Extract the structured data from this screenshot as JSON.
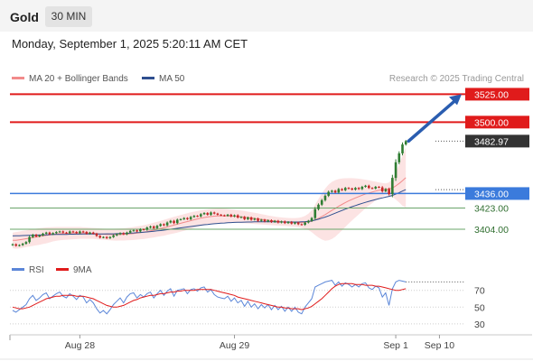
{
  "header": {
    "symbol": "Gold",
    "timeframe": "30 MIN",
    "datetime": "Monday, September 1, 2025 5:20:11 AM CET"
  },
  "colors": {
    "ma20": "#f28b8b",
    "ma50": "#2f4f8f",
    "bands_fill": "#fbdada",
    "resistance": "#e01b1b",
    "support": "#3b7bdc",
    "support_minor": "#6aa56a",
    "candle_up": "#2f7d32",
    "candle_down": "#c62828",
    "rsi": "#5b86d8",
    "rsi_ma": "#e01b1b",
    "current_price_box": "#333333",
    "arrow": "#2a5db0"
  },
  "chart_data": [
    {
      "type": "candlestick",
      "legend": [
        {
          "name": "MA 20 + Bollinger Bands",
          "color": "#f28b8b"
        },
        {
          "name": "MA 50",
          "color": "#2f4f8f"
        }
      ],
      "watermark": "Research © 2025 Trading Central",
      "y_range": [
        3387,
        3531
      ],
      "levels": [
        {
          "value": 3525.0,
          "label": "3525.00",
          "kind": "resistance"
        },
        {
          "value": 3500.0,
          "label": "3500.00",
          "kind": "resistance"
        },
        {
          "value": 3482.97,
          "label": "3482.97",
          "kind": "current"
        },
        {
          "value": 3436.0,
          "label": "3436.00",
          "kind": "support"
        },
        {
          "value": 3423.0,
          "label": "3423.00",
          "kind": "support_minor"
        },
        {
          "value": 3404.0,
          "label": "3404.00",
          "kind": "support_minor"
        }
      ],
      "x_axis": {
        "ticks": [
          {
            "index": 20,
            "label": "Aug 28"
          },
          {
            "index": 66,
            "label": "Aug 29"
          },
          {
            "index": 114,
            "label": "Sep 1"
          },
          {
            "index": 127,
            "label": "Sep 10"
          }
        ]
      },
      "close": [
        3390.5,
        3389.2,
        3389.8,
        3391.0,
        3392.5,
        3397.0,
        3399.0,
        3397.5,
        3398.5,
        3400.0,
        3401.0,
        3399.5,
        3400.5,
        3401.5,
        3402.0,
        3401.0,
        3400.5,
        3402.0,
        3401.5,
        3400.5,
        3402.0,
        3401.5,
        3400.0,
        3401.0,
        3400.0,
        3398.0,
        3396.5,
        3397.0,
        3396.0,
        3397.0,
        3398.5,
        3399.5,
        3400.5,
        3399.5,
        3401.0,
        3402.5,
        3403.0,
        3402.0,
        3404.0,
        3403.5,
        3405.5,
        3406.5,
        3405.0,
        3407.0,
        3408.5,
        3407.5,
        3410.0,
        3411.5,
        3409.5,
        3412.5,
        3413.0,
        3414.0,
        3413.0,
        3415.0,
        3416.0,
        3415.5,
        3417.5,
        3418.5,
        3417.0,
        3419.0,
        3418.0,
        3417.0,
        3416.5,
        3416.0,
        3417.0,
        3415.5,
        3416.5,
        3414.5,
        3415.0,
        3413.0,
        3414.5,
        3412.5,
        3413.5,
        3411.5,
        3412.5,
        3411.0,
        3412.0,
        3410.5,
        3411.5,
        3410.0,
        3411.0,
        3409.5,
        3410.5,
        3409.0,
        3410.0,
        3408.5,
        3408.0,
        3410.0,
        3411.5,
        3414.0,
        3422.0,
        3426.0,
        3430.0,
        3434.0,
        3437.5,
        3438.5,
        3437.0,
        3440.0,
        3439.0,
        3441.0,
        3440.5,
        3439.5,
        3441.0,
        3440.0,
        3442.0,
        3443.0,
        3441.0,
        3440.5,
        3442.0,
        3441.5,
        3438.0,
        3440.0,
        3435.5,
        3450.0,
        3464.0,
        3472.0,
        3480.0,
        3482.97
      ],
      "bands": {
        "from_index": 0,
        "ma20": [
          3394.0,
          3394.0,
          3394.5,
          3395.0,
          3395.5,
          3396.0,
          3396.5,
          3397.0,
          3397.5,
          3398.0,
          3398.5,
          3399.0,
          3399.5,
          3399.8,
          3400.0,
          3400.2,
          3400.3,
          3400.4,
          3400.5,
          3400.6,
          3400.7,
          3400.6,
          3400.5,
          3400.4,
          3400.3,
          3400.0,
          3399.8,
          3399.6,
          3399.4,
          3399.3,
          3399.2,
          3399.2,
          3399.3,
          3399.4,
          3399.6,
          3399.9,
          3400.2,
          3400.6,
          3401.0,
          3401.4,
          3402.0,
          3402.6,
          3403.2,
          3403.9,
          3404.6,
          3405.3,
          3406.1,
          3406.9,
          3407.7,
          3408.5,
          3409.3,
          3410.1,
          3410.9,
          3411.7,
          3412.5,
          3413.2,
          3413.9,
          3414.5,
          3415.0,
          3415.4,
          3415.7,
          3415.9,
          3416.0,
          3416.0,
          3415.9,
          3415.8,
          3415.6,
          3415.4,
          3415.1,
          3414.8,
          3414.5,
          3414.1,
          3413.7,
          3413.3,
          3412.9,
          3412.5,
          3412.1,
          3411.7,
          3411.4,
          3411.1,
          3410.8,
          3410.6,
          3410.4,
          3410.2,
          3410.1,
          3410.0,
          3410.0,
          3410.2,
          3410.6,
          3411.2,
          3412.4,
          3413.8,
          3415.4,
          3417.1,
          3419.0,
          3420.9,
          3422.6,
          3424.5,
          3426.2,
          3427.9,
          3429.4,
          3430.8,
          3432.1,
          3433.3,
          3434.5,
          3435.6,
          3436.5,
          3437.3,
          3438.2,
          3438.9,
          3439.3,
          3439.9,
          3440.1,
          3441.0,
          3442.8,
          3445.0,
          3447.5,
          3450.2
        ],
        "upper": [
          3401.0,
          3401.5,
          3402.0,
          3402.5,
          3403.0,
          3403.5,
          3404.0,
          3404.5,
          3405.0,
          3405.3,
          3405.6,
          3405.8,
          3405.9,
          3406.0,
          3406.0,
          3406.0,
          3406.0,
          3406.0,
          3406.0,
          3406.0,
          3406.0,
          3405.8,
          3405.6,
          3405.4,
          3405.2,
          3405.0,
          3404.8,
          3404.6,
          3404.5,
          3404.5,
          3404.5,
          3404.6,
          3404.7,
          3404.9,
          3405.2,
          3405.6,
          3406.0,
          3406.5,
          3407.0,
          3407.6,
          3408.3,
          3409.0,
          3409.8,
          3410.6,
          3411.5,
          3412.4,
          3413.3,
          3414.2,
          3415.1,
          3416.0,
          3416.8,
          3417.6,
          3418.4,
          3419.1,
          3419.8,
          3420.4,
          3421.0,
          3421.5,
          3421.9,
          3422.2,
          3422.4,
          3422.5,
          3422.5,
          3422.4,
          3422.2,
          3421.9,
          3421.6,
          3421.2,
          3420.8,
          3420.3,
          3419.8,
          3419.3,
          3418.8,
          3418.2,
          3417.6,
          3417.0,
          3416.4,
          3415.8,
          3415.3,
          3414.9,
          3414.6,
          3414.3,
          3414.1,
          3414.0,
          3414.0,
          3414.2,
          3414.8,
          3416.0,
          3418.0,
          3421.0,
          3426.0,
          3431.0,
          3436.0,
          3440.5,
          3444.0,
          3446.5,
          3448.0,
          3449.0,
          3449.5,
          3449.7,
          3449.8,
          3449.8,
          3449.6,
          3449.3,
          3448.9,
          3448.4,
          3447.8,
          3447.2,
          3446.6,
          3446.0,
          3445.5,
          3445.0,
          3446.0,
          3449.0,
          3455.0,
          3462.0,
          3470.0,
          3477.0
        ],
        "lower": [
          3387.0,
          3386.5,
          3386.8,
          3387.3,
          3388.0,
          3388.5,
          3389.0,
          3389.5,
          3390.0,
          3390.7,
          3391.4,
          3392.2,
          3393.1,
          3393.6,
          3394.0,
          3394.4,
          3394.6,
          3394.8,
          3395.0,
          3395.2,
          3395.4,
          3395.4,
          3395.4,
          3395.4,
          3395.4,
          3395.0,
          3394.8,
          3394.6,
          3394.3,
          3394.1,
          3393.9,
          3393.8,
          3393.9,
          3393.9,
          3394.0,
          3394.2,
          3394.4,
          3394.7,
          3395.0,
          3395.2,
          3395.7,
          3396.2,
          3396.6,
          3397.2,
          3397.7,
          3398.2,
          3398.9,
          3399.6,
          3400.3,
          3401.0,
          3401.8,
          3402.6,
          3403.4,
          3404.3,
          3405.2,
          3406.0,
          3406.8,
          3407.5,
          3408.1,
          3408.6,
          3409.0,
          3409.3,
          3409.5,
          3409.6,
          3409.6,
          3409.7,
          3409.6,
          3409.6,
          3409.4,
          3409.3,
          3409.2,
          3408.9,
          3408.6,
          3408.4,
          3408.2,
          3408.0,
          3407.8,
          3407.6,
          3407.5,
          3407.3,
          3407.0,
          3406.9,
          3406.7,
          3406.4,
          3406.2,
          3405.8,
          3405.2,
          3404.4,
          3403.2,
          3401.4,
          3398.8,
          3396.6,
          3394.8,
          3393.7,
          3394.0,
          3395.3,
          3397.2,
          3400.0,
          3402.9,
          3406.1,
          3409.0,
          3411.8,
          3414.6,
          3417.3,
          3420.1,
          3422.8,
          3425.2,
          3427.4,
          3429.8,
          3431.8,
          3433.1,
          3434.8,
          3434.2,
          3433.0,
          3430.6,
          3428.0,
          3425.0,
          3423.4
        ]
      },
      "ma50": [
        3398.0,
        3398.1,
        3398.2,
        3398.3,
        3398.4,
        3398.5,
        3398.6,
        3398.7,
        3398.8,
        3398.9,
        3399.0,
        3399.1,
        3399.2,
        3399.3,
        3399.3,
        3399.4,
        3399.4,
        3399.5,
        3399.5,
        3399.6,
        3399.6,
        3399.7,
        3399.7,
        3399.7,
        3399.8,
        3399.8,
        3399.8,
        3399.8,
        3399.9,
        3399.9,
        3399.9,
        3400.0,
        3400.1,
        3400.2,
        3400.3,
        3400.5,
        3400.7,
        3400.9,
        3401.1,
        3401.3,
        3401.6,
        3401.9,
        3402.2,
        3402.5,
        3402.8,
        3403.2,
        3403.6,
        3404.0,
        3404.4,
        3404.8,
        3405.2,
        3405.6,
        3406.0,
        3406.4,
        3406.8,
        3407.2,
        3407.6,
        3408.0,
        3408.3,
        3408.6,
        3408.9,
        3409.2,
        3409.4,
        3409.6,
        3409.8,
        3410.0,
        3410.1,
        3410.2,
        3410.3,
        3410.4,
        3410.5,
        3410.5,
        3410.6,
        3410.6,
        3410.6,
        3410.6,
        3410.6,
        3410.6,
        3410.6,
        3410.5,
        3410.5,
        3410.5,
        3410.5,
        3410.5,
        3410.5,
        3410.5,
        3410.6,
        3410.8,
        3411.1,
        3411.5,
        3412.2,
        3413.0,
        3413.9,
        3414.9,
        3416.0,
        3417.2,
        3418.4,
        3419.6,
        3420.8,
        3422.0,
        3423.1,
        3424.2,
        3425.2,
        3426.2,
        3427.2,
        3428.1,
        3429.0,
        3429.8,
        3430.6,
        3431.4,
        3432.1,
        3432.8,
        3433.4,
        3434.3,
        3435.5,
        3436.8,
        3438.2,
        3439.5
      ]
    },
    {
      "type": "line",
      "legend": [
        {
          "name": "RSI",
          "color": "#5b86d8"
        },
        {
          "name": "9MA",
          "color": "#e01b1b"
        }
      ],
      "y_range": [
        18,
        88
      ],
      "y_ticks": [
        {
          "value": 70,
          "label": "70"
        },
        {
          "value": 50,
          "label": "50"
        },
        {
          "value": 30,
          "label": "30"
        }
      ],
      "series": [
        {
          "name": "RSI",
          "values": [
            46,
            44,
            47,
            50,
            53,
            60,
            64,
            58,
            61,
            65,
            67,
            60,
            63,
            66,
            68,
            63,
            61,
            66,
            63,
            59,
            64,
            62,
            55,
            59,
            55,
            48,
            43,
            46,
            42,
            47,
            53,
            57,
            61,
            55,
            62,
            66,
            67,
            61,
            65,
            62,
            66,
            68,
            61,
            66,
            70,
            64,
            69,
            72,
            63,
            70,
            71,
            72,
            66,
            71,
            72,
            69,
            73,
            74,
            68,
            71,
            65,
            62,
            61,
            60,
            63,
            57,
            61,
            55,
            58,
            51,
            57,
            50,
            54,
            48,
            53,
            49,
            53,
            47,
            52,
            47,
            51,
            45,
            50,
            45,
            50,
            44,
            42,
            50,
            55,
            60,
            74,
            76,
            78,
            80,
            81,
            82,
            76,
            80,
            75,
            79,
            77,
            74,
            77,
            74,
            78,
            79,
            73,
            71,
            75,
            73,
            62,
            67,
            52,
            72,
            80,
            82,
            81,
            80
          ]
        },
        {
          "name": "9MA",
          "values": [
            50,
            49,
            48,
            48,
            49,
            50,
            52,
            54,
            56,
            58,
            60,
            61,
            62,
            63,
            63,
            64,
            64,
            64,
            64,
            63,
            63,
            63,
            62,
            61,
            60,
            58,
            56,
            54,
            52,
            51,
            50,
            50,
            51,
            52,
            54,
            56,
            58,
            59,
            61,
            62,
            63,
            64,
            64,
            65,
            66,
            66,
            67,
            68,
            68,
            69,
            69,
            70,
            70,
            70,
            70,
            71,
            71,
            71,
            71,
            71,
            70,
            69,
            68,
            67,
            66,
            65,
            64,
            62,
            61,
            60,
            59,
            58,
            57,
            56,
            55,
            54,
            53,
            52,
            51,
            50,
            50,
            49,
            49,
            48,
            48,
            48,
            47,
            48,
            49,
            51,
            54,
            57,
            60,
            64,
            68,
            72,
            75,
            77,
            78,
            78,
            78,
            78,
            77,
            77,
            77,
            76,
            76,
            76,
            75,
            75,
            74,
            73,
            72,
            71,
            70,
            70,
            71,
            72
          ]
        }
      ]
    }
  ]
}
